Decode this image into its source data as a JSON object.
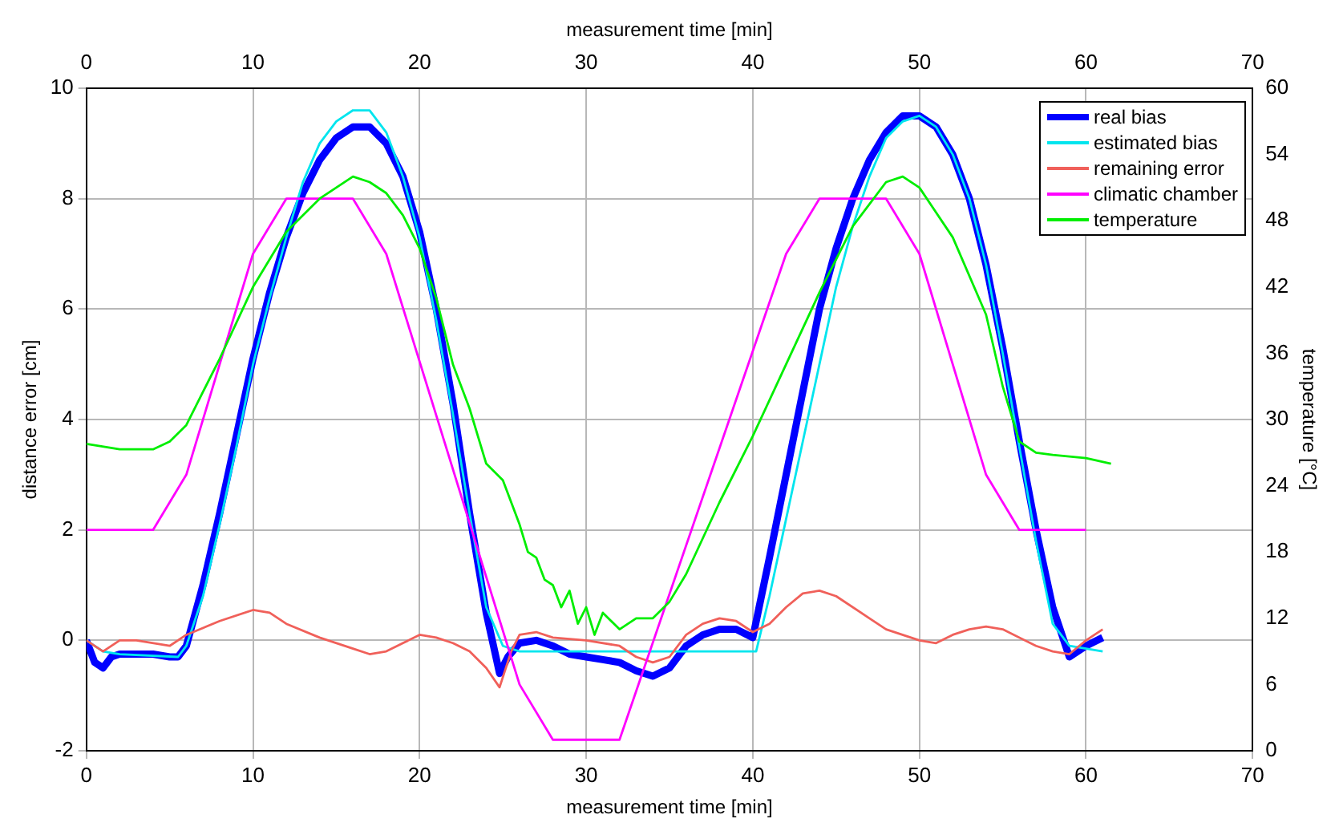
{
  "chart_data": {
    "type": "line",
    "xlabel": "measurement time [min]",
    "x2label": "measurement time [min]",
    "ylabel": "distance error [cm]",
    "y2label": "temperature [°C]",
    "xlim": [
      0,
      70
    ],
    "xticks": [
      0,
      10,
      20,
      30,
      40,
      50,
      60,
      70
    ],
    "x2lim": [
      0,
      70
    ],
    "x2ticks": [
      0,
      10,
      20,
      30,
      40,
      50,
      60,
      70
    ],
    "ylim": [
      -2,
      10
    ],
    "yticks": [
      -2,
      0,
      2,
      4,
      6,
      8,
      10
    ],
    "y2lim": [
      0,
      60
    ],
    "y2ticks": [
      0,
      6,
      12,
      18,
      24,
      30,
      36,
      42,
      48,
      54,
      60
    ],
    "grid": true,
    "legend": "top right",
    "marker": "none",
    "line_style": "solid",
    "series": [
      {
        "name": "real bias",
        "color": "#0000ff",
        "x": [
          0,
          0.5,
          1,
          1.5,
          2,
          4,
          5,
          5.5,
          6,
          7,
          8,
          9,
          10,
          11,
          12,
          13,
          14,
          15,
          16,
          17,
          18,
          19,
          20,
          21,
          22,
          23,
          24,
          24.8,
          25.3,
          26,
          27,
          28,
          29,
          30,
          31,
          32,
          33,
          34,
          35,
          36,
          37,
          38,
          39,
          40,
          41,
          42,
          43,
          44,
          45,
          46,
          47,
          48,
          49,
          50,
          51,
          52,
          53,
          54,
          55,
          56,
          57,
          58,
          59,
          60,
          61
        ],
        "values": [
          0,
          -0.4,
          -0.5,
          -0.3,
          -0.25,
          -0.25,
          -0.3,
          -0.3,
          -0.1,
          1,
          2.3,
          3.7,
          5.1,
          6.3,
          7.3,
          8.1,
          8.7,
          9.1,
          9.3,
          9.3,
          9,
          8.4,
          7.4,
          6,
          4.3,
          2.3,
          0.5,
          -0.6,
          -0.3,
          -0.05,
          0,
          -0.1,
          -0.25,
          -0.3,
          -0.35,
          -0.4,
          -0.55,
          -0.65,
          -0.5,
          -0.1,
          0.1,
          0.2,
          0.2,
          0.05,
          1.5,
          3,
          4.5,
          6,
          7.1,
          8,
          8.7,
          9.2,
          9.5,
          9.5,
          9.3,
          8.8,
          8,
          6.8,
          5.3,
          3.6,
          2,
          0.6,
          -0.3,
          -0.1,
          0.05
        ]
      },
      {
        "name": "estimated bias",
        "color": "#00e5ee",
        "x": [
          0,
          1,
          2,
          5.5,
          6,
          7,
          8,
          9,
          10,
          11,
          12,
          13,
          14,
          15,
          16,
          17,
          18,
          19,
          20,
          21,
          22,
          23,
          24,
          25,
          26,
          40.2,
          41,
          42,
          43,
          44,
          45,
          46,
          47,
          48,
          49,
          50,
          51,
          52,
          53,
          54,
          55,
          56,
          57,
          58,
          59,
          61
        ],
        "values": [
          0,
          -0.2,
          -0.25,
          -0.3,
          -0.1,
          0.8,
          2.1,
          3.5,
          5,
          6.2,
          7.3,
          8.3,
          9,
          9.4,
          9.6,
          9.6,
          9.2,
          8.4,
          7.3,
          5.8,
          4.1,
          2.3,
          0.6,
          -0.1,
          -0.2,
          -0.2,
          0.8,
          2.2,
          3.6,
          5,
          6.4,
          7.5,
          8.4,
          9.1,
          9.4,
          9.5,
          9.3,
          8.8,
          8,
          6.8,
          5.2,
          3.5,
          1.8,
          0.3,
          -0.1,
          -0.2
        ]
      },
      {
        "name": "remaining error",
        "color": "#f0605a",
        "x": [
          0,
          1,
          2,
          3,
          5,
          6,
          8,
          10,
          11,
          12,
          14,
          16,
          17,
          18,
          19,
          20,
          21,
          22,
          23,
          24,
          24.8,
          25.5,
          26,
          27,
          28,
          30,
          32,
          33,
          34,
          35,
          36,
          37,
          38,
          39,
          40,
          41,
          42,
          43,
          44,
          45,
          47,
          48,
          50,
          51,
          52,
          53,
          54,
          55,
          57,
          58,
          59,
          60,
          61
        ],
        "values": [
          0,
          -0.2,
          0,
          0,
          -0.1,
          0.1,
          0.35,
          0.55,
          0.5,
          0.3,
          0.05,
          -0.15,
          -0.25,
          -0.2,
          -0.05,
          0.1,
          0.05,
          -0.05,
          -0.2,
          -0.5,
          -0.85,
          -0.2,
          0.1,
          0.15,
          0.05,
          0,
          -0.1,
          -0.3,
          -0.4,
          -0.3,
          0.1,
          0.3,
          0.4,
          0.35,
          0.15,
          0.3,
          0.6,
          0.85,
          0.9,
          0.8,
          0.4,
          0.2,
          0,
          -0.05,
          0.1,
          0.2,
          0.25,
          0.2,
          -0.1,
          -0.2,
          -0.25,
          0,
          0.2
        ]
      },
      {
        "name": "climatic chamber",
        "color": "#ff00ff",
        "axis": "y2",
        "x": [
          0,
          4,
          6,
          10,
          12,
          16,
          18,
          26,
          28,
          32,
          42,
          44,
          48,
          50,
          54,
          56,
          60
        ],
        "values": [
          20,
          20,
          25,
          45,
          50,
          50,
          45,
          6,
          1,
          1,
          45,
          50,
          50,
          45,
          25,
          20,
          20
        ]
      },
      {
        "name": "temperature",
        "color": "#00ee00",
        "axis": "y2",
        "x": [
          0,
          2,
          4,
          5,
          6,
          8,
          10,
          12,
          14,
          16,
          17,
          18,
          19,
          20,
          21,
          22,
          23,
          24,
          25,
          26,
          26.5,
          27,
          27.5,
          28,
          28.5,
          29,
          29.5,
          30,
          30.5,
          31,
          32,
          33,
          34,
          35,
          36,
          38,
          40,
          42,
          44,
          46,
          48,
          49,
          50,
          52,
          54,
          55,
          56,
          57,
          58,
          60,
          61.5
        ],
        "values": [
          27.8,
          27.3,
          27.3,
          28,
          29.5,
          35.5,
          42,
          47,
          50,
          52,
          51.5,
          50.5,
          48.5,
          45.5,
          41,
          35,
          31,
          26,
          24.5,
          20.5,
          18,
          17.5,
          15.5,
          15,
          13,
          14.5,
          11.5,
          13,
          10.5,
          12.5,
          11,
          12,
          12,
          13.5,
          16,
          22.5,
          28.5,
          35,
          41.5,
          47.5,
          51.5,
          52,
          51,
          46.5,
          39.5,
          33,
          28,
          27,
          26.8,
          26.5,
          26
        ]
      }
    ]
  }
}
